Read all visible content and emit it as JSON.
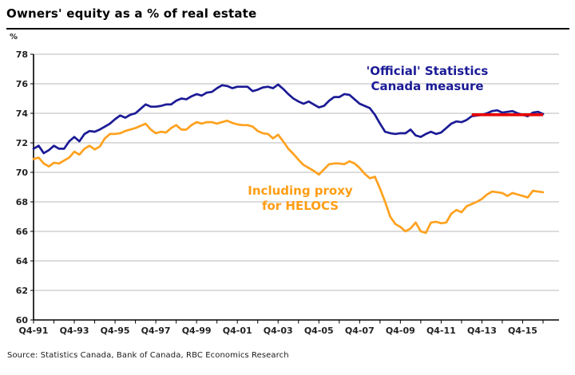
{
  "title": "Owners' equity as a % of real estate",
  "y_unit_label": "%",
  "source_line": "Source: Statistics Canada, Bank of Canada, RBC Economics Research",
  "annotations": {
    "official_line1": "'Official' Statistics",
    "official_line2": "Canada measure",
    "heloc_line1": "Including proxy",
    "heloc_line2": "for HELOCS"
  },
  "colors": {
    "official_series": "#1b1b96",
    "heloc_series": "#ffa11e",
    "reference_line": "#e60000",
    "gridline": "#c8c8c8",
    "axis": "#000000",
    "tick_label": "#222222"
  },
  "chart_data": {
    "type": "line",
    "title": "Owners' equity as a % of real estate",
    "ylabel": "%",
    "xlabel": "",
    "frequency": "quarterly",
    "x_start": "Q4-1991",
    "x_end": "Q4-2016",
    "ylim": [
      60,
      78
    ],
    "y_ticks": [
      60,
      62,
      64,
      66,
      68,
      70,
      72,
      74,
      76,
      78
    ],
    "grid": true,
    "legend_position": "none (in-chart text annotations)",
    "x_tick_labels": [
      "Q4-91",
      "Q4-93",
      "Q4-95",
      "Q4-97",
      "Q4-99",
      "Q4-01",
      "Q4-03",
      "Q4-05",
      "Q4-07",
      "Q4-09",
      "Q4-11",
      "Q4-13",
      "Q4-15"
    ],
    "x_major_tick_every_n_points": 8,
    "x_minor_tick_every_n_points": 4,
    "series": [
      {
        "name": "'Official' Statistics Canada measure",
        "color": "#1b1b96",
        "values": [
          71.6,
          71.8,
          71.3,
          71.5,
          71.8,
          71.6,
          71.6,
          72.1,
          72.4,
          72.1,
          72.6,
          72.8,
          72.75,
          72.9,
          73.1,
          73.3,
          73.6,
          73.85,
          73.7,
          73.9,
          74.0,
          74.3,
          74.6,
          74.45,
          74.45,
          74.5,
          74.6,
          74.6,
          74.85,
          75.0,
          74.95,
          75.15,
          75.3,
          75.2,
          75.4,
          75.45,
          75.7,
          75.9,
          75.85,
          75.7,
          75.8,
          75.8,
          75.8,
          75.5,
          75.6,
          75.75,
          75.8,
          75.7,
          75.95,
          75.65,
          75.3,
          75.0,
          74.8,
          74.65,
          74.8,
          74.6,
          74.4,
          74.5,
          74.85,
          75.1,
          75.1,
          75.3,
          75.25,
          74.95,
          74.65,
          74.5,
          74.35,
          73.9,
          73.3,
          72.75,
          72.65,
          72.6,
          72.65,
          72.65,
          72.9,
          72.5,
          72.4,
          72.6,
          72.75,
          72.6,
          72.7,
          73.0,
          73.3,
          73.45,
          73.4,
          73.55,
          73.8,
          73.85,
          73.9,
          74.0,
          74.15,
          74.2,
          74.05,
          74.1,
          74.15,
          74.0,
          73.9,
          73.8,
          74.05,
          74.1,
          73.95
        ]
      },
      {
        "name": "Including proxy for HELOCS",
        "color": "#ffa11e",
        "values": [
          70.9,
          71.0,
          70.6,
          70.4,
          70.65,
          70.6,
          70.8,
          71.0,
          71.4,
          71.2,
          71.6,
          71.8,
          71.55,
          71.75,
          72.3,
          72.6,
          72.6,
          72.65,
          72.8,
          72.9,
          73.0,
          73.15,
          73.3,
          72.9,
          72.65,
          72.75,
          72.7,
          73.0,
          73.2,
          72.9,
          72.9,
          73.2,
          73.4,
          73.3,
          73.4,
          73.4,
          73.3,
          73.4,
          73.5,
          73.35,
          73.25,
          73.2,
          73.2,
          73.1,
          72.8,
          72.65,
          72.6,
          72.3,
          72.55,
          72.1,
          71.6,
          71.25,
          70.85,
          70.5,
          70.3,
          70.1,
          69.85,
          70.2,
          70.55,
          70.6,
          70.6,
          70.55,
          70.75,
          70.6,
          70.3,
          69.9,
          69.6,
          69.7,
          68.9,
          68.0,
          67.0,
          66.5,
          66.3,
          66.0,
          66.2,
          66.6,
          66.0,
          65.9,
          66.6,
          66.65,
          66.55,
          66.6,
          67.2,
          67.45,
          67.3,
          67.7,
          67.85,
          68.0,
          68.2,
          68.5,
          68.7,
          68.65,
          68.6,
          68.4,
          68.6,
          68.5,
          68.4,
          68.3,
          68.75,
          68.7,
          68.65
        ]
      }
    ],
    "reference_line": {
      "name": "flat red marker line",
      "color": "#e60000",
      "value": 73.9,
      "start": "Q2-2013",
      "end": "Q4-2016",
      "start_index": 86,
      "end_index": 100
    }
  }
}
